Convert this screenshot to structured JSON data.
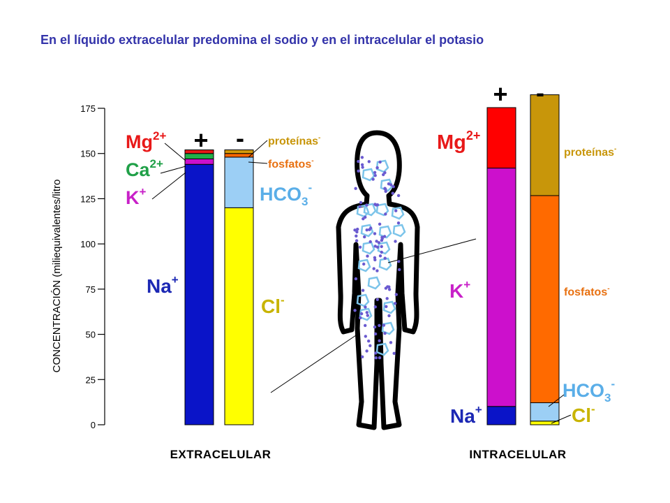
{
  "title": "En el líquido extracelular predomina el sodio y en el intracelular el potasio",
  "chart_data": {
    "type": "bar",
    "stacked": true,
    "ylabel": "CONCENTRACIÓN  (miliequivalentes/litro",
    "ylim": [
      0,
      175
    ],
    "yticks": [
      "0",
      "25",
      "50",
      "75",
      "100",
      "125",
      "150",
      "175"
    ],
    "ytick_values": [
      0,
      25,
      50,
      75,
      100,
      125,
      150,
      175
    ],
    "sign_labels": {
      "plus": "+",
      "minus": "-"
    },
    "panels": [
      {
        "name": "EXTRACELULAR",
        "columns": [
          {
            "sign": "+",
            "segments": [
              {
                "label": "Na",
                "sup": "+",
                "value": 144,
                "color": "#0a14c8",
                "label_color": "#1c28b4"
              },
              {
                "label": "K",
                "sup": "+",
                "value": 3,
                "color": "#cc10cc",
                "label_color": "#c820c8"
              },
              {
                "label": "Ca",
                "sup": "2+",
                "value": 3,
                "color": "#22b04a",
                "label_color": "#20a048"
              },
              {
                "label": "Mg",
                "sup": "2+",
                "value": 2,
                "color": "#e81818",
                "label_color": "#e81818"
              }
            ]
          },
          {
            "sign": "-",
            "segments": [
              {
                "label": "Cl",
                "sup": "-",
                "value": 120,
                "color": "#ffff00",
                "label_color": "#c8b400"
              },
              {
                "label": "HCO",
                "sub": "3",
                "sup": "-",
                "value": 28,
                "color": "#9ccff5",
                "label_color": "#5aaee8"
              },
              {
                "label": "fosfatos",
                "sup": "-",
                "value": 2,
                "color": "#ff6600",
                "label_color": "#e87010"
              },
              {
                "label": "proteínas",
                "sup": "-",
                "value": 2,
                "color": "#d29a0a",
                "label_color": "#c8960a"
              }
            ]
          }
        ]
      },
      {
        "name": "INTRACELULAR",
        "columns": [
          {
            "sign": "+",
            "segments": [
              {
                "label": "Na",
                "sup": "+",
                "value": 10,
                "color": "#0a14c8",
                "label_color": "#1c28b4"
              },
              {
                "label": "K",
                "sup": "+",
                "value": 130,
                "color": "#cc10cc",
                "label_color": "#c820c8"
              },
              {
                "label": "Mg",
                "sup": "2+",
                "value": 33,
                "color": "#ff0000",
                "label_color": "#e81818"
              }
            ]
          },
          {
            "sign": "-",
            "segments": [
              {
                "label": "Cl",
                "sup": "-",
                "value": 2,
                "color": "#ffff00",
                "label_color": "#c8b400"
              },
              {
                "label": "HCO",
                "sub": "3",
                "sup": "-",
                "value": 10,
                "color": "#9ccff5",
                "label_color": "#5aaee8"
              },
              {
                "label": "fosfatos",
                "sup": "-",
                "value": 113,
                "color": "#ff6a00",
                "label_color": "#e87010"
              },
              {
                "label": "proteínas",
                "sup": "-",
                "value": 55,
                "color": "#c8960a",
                "label_color": "#c8960a"
              }
            ]
          }
        ]
      }
    ]
  }
}
